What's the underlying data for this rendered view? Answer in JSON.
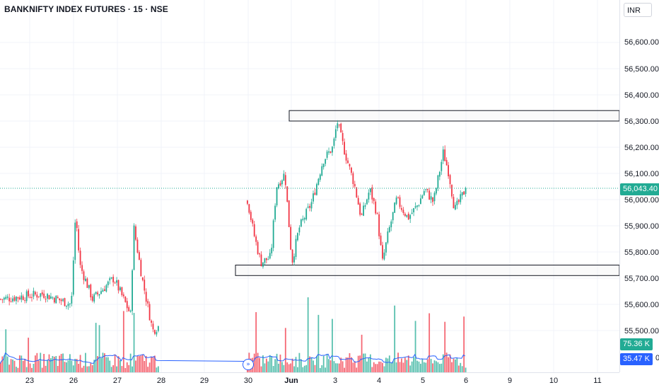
{
  "header": {
    "title": "BANKNIFTY INDEX FUTURES · 15 · NSE",
    "currency": "INR"
  },
  "price_axis": {
    "ticks": [
      "56,600.00",
      "56,500.00",
      "56,400.00",
      "56,300.00",
      "56,200.00",
      "56,100.00",
      "56,000.00",
      "55,900.00",
      "55,800.00",
      "55,700.00",
      "55,600.00",
      "55,500.00"
    ],
    "last_price": "56,043.40",
    "volume_label": "75.36 K",
    "ma_label": "35.47 K",
    "partial_label": "0"
  },
  "time_axis": {
    "ticks": [
      "23",
      "26",
      "27",
      "28",
      "29",
      "30",
      "Jun",
      "3",
      "4",
      "5",
      "6",
      "9",
      "10",
      "11"
    ]
  },
  "colors": {
    "up": "#22ab94",
    "down": "#f23645",
    "ma_line": "#2962ff",
    "last_price_line": "#22ab94",
    "grid": "#f0f3fa"
  },
  "chart_data": {
    "type": "candlestick",
    "symbol": "BANKNIFTY INDEX FUTURES",
    "interval": "15",
    "exchange": "NSE",
    "ylim": [
      55400,
      56700
    ],
    "last_price": 56043.4,
    "session_anchors": [
      {
        "label": "26",
        "open": 55550,
        "high": 55960,
        "low": 55480,
        "close": 55630
      },
      {
        "label": "27",
        "open": 55630,
        "high": 55940,
        "low": 55500,
        "close": 55540
      },
      {
        "label": "30",
        "open": 55980,
        "high": 56030,
        "low": 55710,
        "close": 55800
      },
      {
        "label": "Jun",
        "open": 55800,
        "high": 56110,
        "low": 55720,
        "close": 55990
      },
      {
        "label": "3",
        "open": 56100,
        "high": 56360,
        "low": 56000,
        "close": 56090
      },
      {
        "label": "4",
        "open": 55990,
        "high": 56020,
        "low": 55700,
        "close": 55940
      },
      {
        "label": "5",
        "open": 55960,
        "high": 56060,
        "low": 55880,
        "close": 55990
      },
      {
        "label": "6",
        "open": 56040,
        "high": 56220,
        "low": 55910,
        "close": 56043.4
      }
    ],
    "zones": [
      {
        "name": "resistance",
        "from": 56300,
        "to": 56340
      },
      {
        "name": "support",
        "from": 55710,
        "to": 55750
      }
    ],
    "volume": {
      "last": 75.36,
      "ma": 35.47,
      "unit": "K"
    }
  }
}
